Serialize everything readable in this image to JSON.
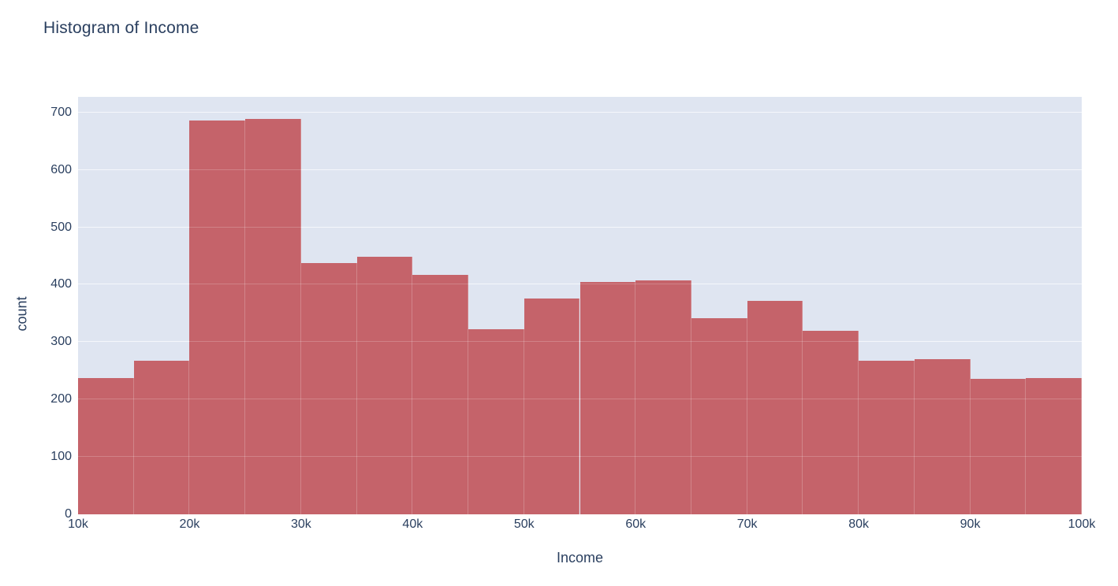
{
  "page": {
    "background": "#ffffff"
  },
  "chart_data": {
    "type": "bar",
    "chart_kind": "histogram",
    "title": "Histogram of Income",
    "xlabel": "Income",
    "ylabel": "count",
    "categories": [
      "10k-15k",
      "15k-20k",
      "20k-25k",
      "25k-30k",
      "30k-35k",
      "35k-40k",
      "40k-45k",
      "45k-50k",
      "50k-55k",
      "55k-60k",
      "60k-65k",
      "65k-70k",
      "70k-75k",
      "75k-80k",
      "80k-85k",
      "85k-90k",
      "90k-95k",
      "95k-100k"
    ],
    "values": [
      238,
      267,
      686,
      688,
      437,
      449,
      417,
      323,
      376,
      404,
      408,
      341,
      372,
      319,
      267,
      270,
      236,
      238
    ],
    "bin_width": 5000,
    "x_ticks": [
      "10k",
      "20k",
      "30k",
      "40k",
      "50k",
      "60k",
      "70k",
      "80k",
      "90k",
      "100k"
    ],
    "y_ticks": [
      0,
      100,
      200,
      300,
      400,
      500,
      600,
      700
    ],
    "xlim_k": [
      10,
      100
    ],
    "ylim": [
      0,
      727
    ],
    "grid": true,
    "legend": "none",
    "bar_color": "#c5636a",
    "plot_bgcolor": "#dfe5f1",
    "grid_color": "#f3f6fb",
    "text_color": "#2a3f5f",
    "paper_bgcolor": "#ffffff"
  }
}
